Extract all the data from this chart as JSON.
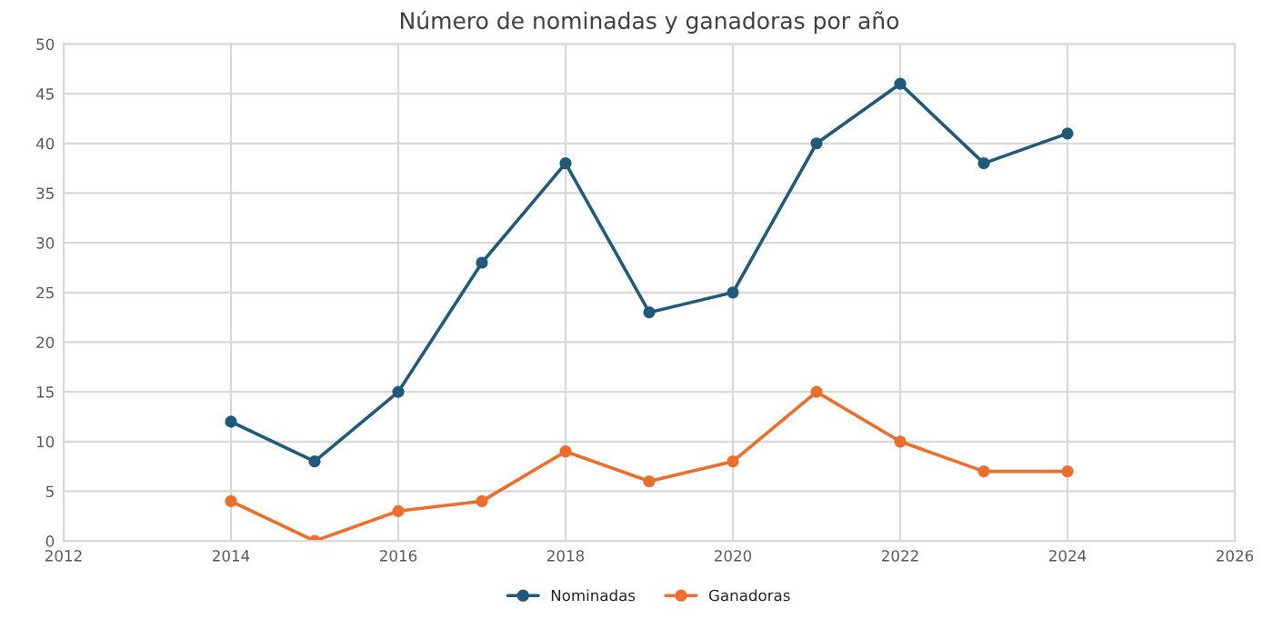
{
  "chart_data": {
    "type": "line",
    "title": "Número de nominadas y ganadoras por año",
    "x": [
      2014,
      2015,
      2016,
      2017,
      2018,
      2019,
      2020,
      2021,
      2022,
      2023,
      2024
    ],
    "series": [
      {
        "name": "Nominadas",
        "color": "#1f5a7a",
        "values": [
          12,
          8,
          15,
          28,
          38,
          23,
          25,
          40,
          46,
          38,
          41
        ]
      },
      {
        "name": "Ganadoras",
        "color": "#ed6d2a",
        "values": [
          4,
          0,
          3,
          4,
          9,
          6,
          8,
          15,
          10,
          7,
          7
        ]
      }
    ],
    "xlim": [
      2012,
      2026
    ],
    "xticks": [
      2012,
      2014,
      2016,
      2018,
      2020,
      2022,
      2024,
      2026
    ],
    "ylim": [
      0,
      50
    ],
    "yticks": [
      0,
      5,
      10,
      15,
      20,
      25,
      30,
      35,
      40,
      45,
      50
    ],
    "grid": true,
    "legend": "bottom",
    "marker": "circle",
    "line_style": "solid"
  }
}
